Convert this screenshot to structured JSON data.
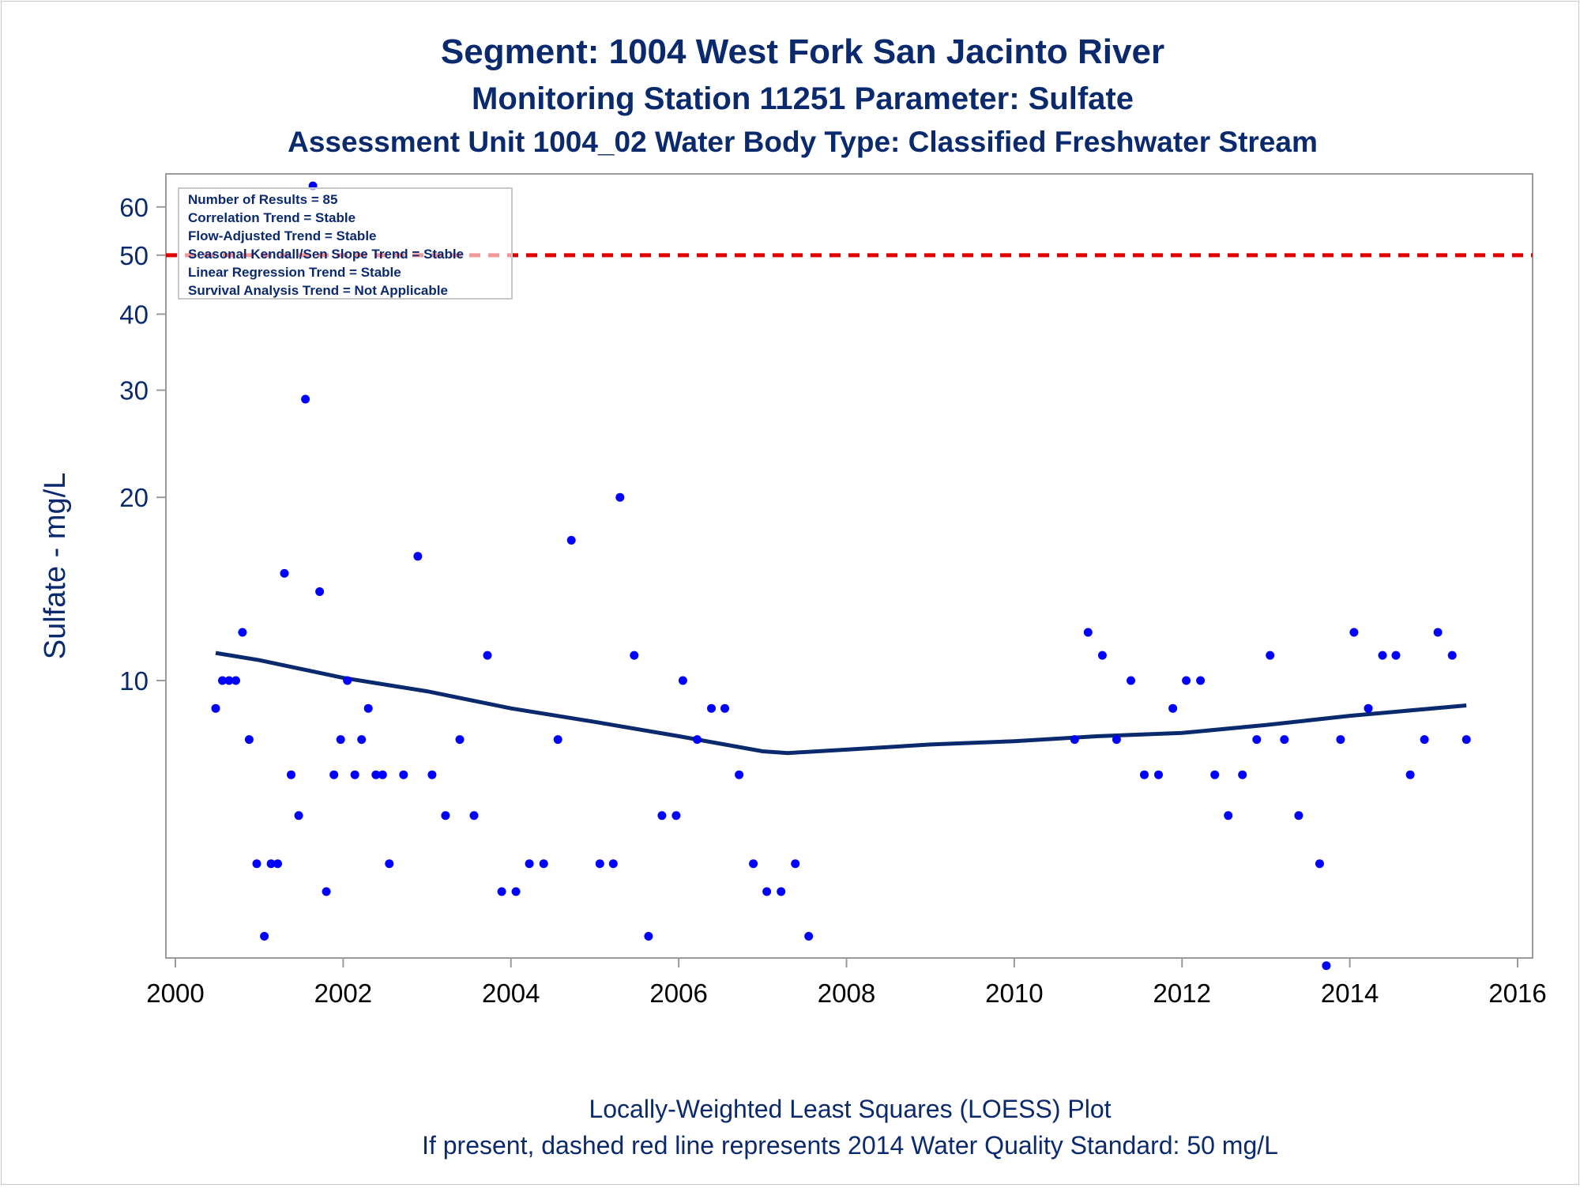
{
  "titles": {
    "line1": "Segment: 1004  West Fork San Jacinto River",
    "line2": "Monitoring Station 11251 Parameter: Sulfate",
    "line3": "Assessment Unit 1004_02   Water Body Type: Classified Freshwater Stream"
  },
  "stats_box": [
    "Number of Results = 85",
    "Correlation Trend = Stable",
    "Flow-Adjusted Trend = Stable",
    "Seasonal Kendall/Sen Slope Trend = Stable",
    "Linear Regression Trend = Stable",
    "Survival Analysis Trend = Not Applicable"
  ],
  "footnotes": {
    "line1": "Locally-Weighted Least Squares (LOESS) Plot",
    "line2": "If present, dashed red line represents 2014 Water Quality Standard: 50    mg/L"
  },
  "colors": {
    "title": "#0b2a6e",
    "points": "#0000ff",
    "loess": "#0b2a6e",
    "standard": "#e00000",
    "axis": "#9a9a9a"
  },
  "chart_data": {
    "type": "scatter",
    "ylabel": "Sulfate - mg/L",
    "xlabel": "",
    "x_scale": "linear",
    "y_scale": "log",
    "xlim": [
      2000,
      2016
    ],
    "ylim": [
      3.5,
      68
    ],
    "x_ticks": [
      2000,
      2002,
      2004,
      2006,
      2008,
      2010,
      2012,
      2014,
      2016
    ],
    "y_ticks": [
      10,
      20,
      30,
      40,
      50,
      60
    ],
    "grid": false,
    "legend": "stats box top-left",
    "standard_line": {
      "value": 50,
      "style": "dashed"
    },
    "points": [
      [
        2000.48,
        9
      ],
      [
        2000.56,
        10
      ],
      [
        2000.64,
        10
      ],
      [
        2000.72,
        10
      ],
      [
        2000.8,
        12
      ],
      [
        2000.88,
        8
      ],
      [
        2000.97,
        5
      ],
      [
        2001.06,
        3.8
      ],
      [
        2001.14,
        5
      ],
      [
        2001.22,
        5
      ],
      [
        2001.3,
        15
      ],
      [
        2001.38,
        7
      ],
      [
        2001.47,
        6
      ],
      [
        2001.55,
        29
      ],
      [
        2001.64,
        65
      ],
      [
        2001.72,
        14
      ],
      [
        2001.8,
        4.5
      ],
      [
        2001.89,
        7
      ],
      [
        2001.97,
        8
      ],
      [
        2002.05,
        10
      ],
      [
        2002.14,
        7
      ],
      [
        2002.22,
        8
      ],
      [
        2002.3,
        9
      ],
      [
        2002.39,
        7
      ],
      [
        2002.47,
        7
      ],
      [
        2002.55,
        5
      ],
      [
        2002.72,
        7
      ],
      [
        2002.89,
        16
      ],
      [
        2003.06,
        7
      ],
      [
        2003.22,
        6
      ],
      [
        2003.39,
        8
      ],
      [
        2003.56,
        6
      ],
      [
        2003.72,
        11
      ],
      [
        2003.89,
        4.5
      ],
      [
        2004.06,
        4.5
      ],
      [
        2004.22,
        5
      ],
      [
        2004.39,
        5
      ],
      [
        2004.56,
        8
      ],
      [
        2004.72,
        17
      ],
      [
        2005.06,
        5
      ],
      [
        2005.22,
        5
      ],
      [
        2005.3,
        20
      ],
      [
        2005.47,
        11
      ],
      [
        2005.64,
        3.8
      ],
      [
        2005.8,
        6
      ],
      [
        2005.97,
        6
      ],
      [
        2006.05,
        10
      ],
      [
        2006.22,
        8
      ],
      [
        2006.39,
        9
      ],
      [
        2006.55,
        9
      ],
      [
        2006.72,
        7
      ],
      [
        2006.89,
        5
      ],
      [
        2007.05,
        4.5
      ],
      [
        2007.22,
        4.5
      ],
      [
        2007.39,
        5
      ],
      [
        2007.55,
        3.8
      ],
      [
        2010.72,
        8
      ],
      [
        2010.88,
        12
      ],
      [
        2011.05,
        11
      ],
      [
        2011.22,
        8
      ],
      [
        2011.39,
        10
      ],
      [
        2011.55,
        7
      ],
      [
        2011.72,
        7
      ],
      [
        2011.89,
        9
      ],
      [
        2012.05,
        10
      ],
      [
        2012.22,
        10
      ],
      [
        2012.39,
        7
      ],
      [
        2012.55,
        6
      ],
      [
        2012.72,
        7
      ],
      [
        2012.89,
        8
      ],
      [
        2013.05,
        11
      ],
      [
        2013.22,
        8
      ],
      [
        2013.39,
        6
      ],
      [
        2013.64,
        5
      ],
      [
        2013.72,
        3.4
      ],
      [
        2013.89,
        8
      ],
      [
        2014.05,
        12
      ],
      [
        2014.22,
        9
      ],
      [
        2014.39,
        11
      ],
      [
        2014.55,
        11
      ],
      [
        2014.72,
        7
      ],
      [
        2014.89,
        8
      ],
      [
        2015.05,
        12
      ],
      [
        2015.22,
        11
      ],
      [
        2015.39,
        8
      ]
    ],
    "loess": [
      [
        2000.48,
        11.1
      ],
      [
        2001.0,
        10.8
      ],
      [
        2002.0,
        10.1
      ],
      [
        2003.0,
        9.6
      ],
      [
        2004.0,
        9.0
      ],
      [
        2005.0,
        8.55
      ],
      [
        2006.0,
        8.1
      ],
      [
        2007.0,
        7.65
      ],
      [
        2007.3,
        7.6
      ],
      [
        2008.0,
        7.7
      ],
      [
        2009.0,
        7.85
      ],
      [
        2010.0,
        7.95
      ],
      [
        2011.0,
        8.1
      ],
      [
        2012.0,
        8.2
      ],
      [
        2013.0,
        8.45
      ],
      [
        2014.0,
        8.75
      ],
      [
        2015.39,
        9.1
      ]
    ]
  }
}
